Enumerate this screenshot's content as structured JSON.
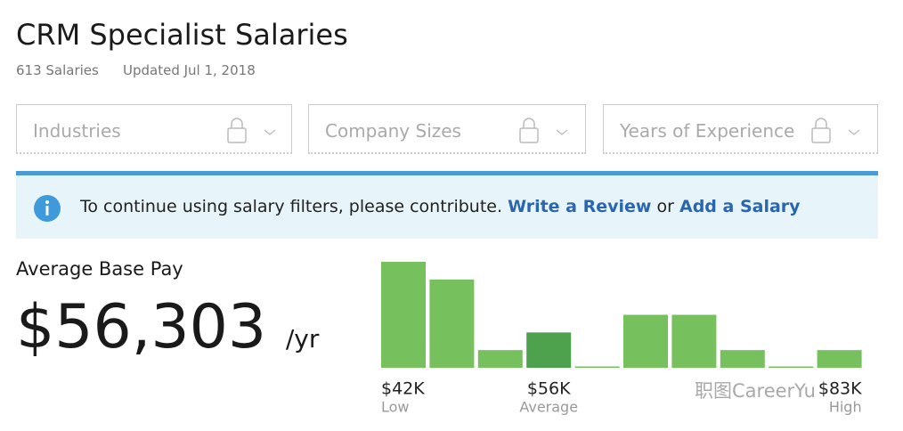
{
  "header": {
    "title": "CRM Specialist Salaries",
    "salary_count": "613 Salaries",
    "updated": "Updated Jul 1, 2018"
  },
  "filters": [
    "Industries",
    "Company Sizes",
    "Years of Experience"
  ],
  "banner": {
    "text": "To continue using salary filters, please contribute.",
    "link_review": "Write a Review",
    "or": "or",
    "link_salary": "Add a Salary"
  },
  "pay": {
    "label": "Average Base Pay",
    "amount": "$56,303",
    "unit": "/yr"
  },
  "watermark": "职图CareerYu",
  "chart_data": {
    "type": "bar",
    "categories": [
      "$42K",
      null,
      null,
      "$56K",
      null,
      null,
      null,
      null,
      null,
      "$83K"
    ],
    "captions": [
      "Low",
      null,
      null,
      "Average",
      null,
      null,
      null,
      null,
      null,
      "High"
    ],
    "values": [
      6,
      5,
      1,
      2,
      0,
      3,
      3,
      1,
      0,
      1
    ],
    "colors": [
      "#77c05e",
      "#77c05e",
      "#77c05e",
      "#4ea24e",
      "#77c05e",
      "#77c05e",
      "#77c05e",
      "#77c05e",
      "#77c05e",
      "#77c05e"
    ]
  }
}
